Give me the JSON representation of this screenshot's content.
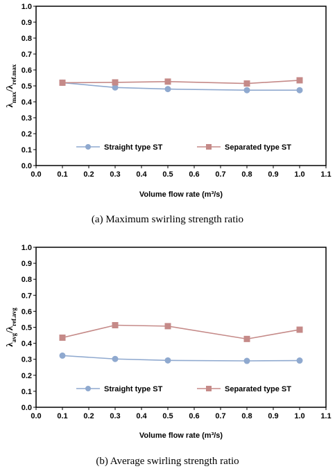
{
  "chart_data": [
    {
      "type": "line",
      "x": [
        0.1,
        0.3,
        0.5,
        0.8,
        1.0
      ],
      "series": [
        {
          "name": "Straight type ST",
          "values": [
            0.52,
            0.49,
            0.48,
            0.473,
            0.473
          ],
          "color": "#8fa9cf",
          "marker": "circle"
        },
        {
          "name": "Separated type ST",
          "values": [
            0.52,
            0.522,
            0.527,
            0.515,
            0.535
          ],
          "color": "#c58a88",
          "marker": "square"
        }
      ],
      "xlabel": "Volume flow rate (m³/s)",
      "ylabel_main": "λ",
      "ylabel_main_sub": "max",
      "ylabel_ref": "λ",
      "ylabel_ref_sub": "ref.max",
      "xlim": [
        0.0,
        1.1
      ],
      "ylim": [
        0.0,
        1.0
      ],
      "xticks": [
        "0.0",
        "0.1",
        "0.2",
        "0.3",
        "0.4",
        "0.5",
        "0.6",
        "0.7",
        "0.8",
        "0.9",
        "1.0",
        "1.1"
      ],
      "yticks": [
        "0.0",
        "0.1",
        "0.2",
        "0.3",
        "0.4",
        "0.5",
        "0.6",
        "0.7",
        "0.8",
        "0.9",
        "1.0"
      ],
      "legend_position": "lower-center",
      "grid": false,
      "caption": "(a)  Maximum  swirling  strength  ratio"
    },
    {
      "type": "line",
      "x": [
        0.1,
        0.3,
        0.5,
        0.8,
        1.0
      ],
      "series": [
        {
          "name": "Straight type ST",
          "values": [
            0.323,
            0.302,
            0.293,
            0.29,
            0.292
          ],
          "color": "#8fa9cf",
          "marker": "circle"
        },
        {
          "name": "Separated type ST",
          "values": [
            0.435,
            0.513,
            0.507,
            0.427,
            0.485
          ],
          "color": "#c58a88",
          "marker": "square"
        }
      ],
      "xlabel": "Volume flow rate (m³/s)",
      "ylabel_main": "λ",
      "ylabel_main_sub": "avg",
      "ylabel_ref": "λ",
      "ylabel_ref_sub": "ref.avg",
      "xlim": [
        0.0,
        1.1
      ],
      "ylim": [
        0.0,
        1.0
      ],
      "xticks": [
        "0.0",
        "0.1",
        "0.2",
        "0.3",
        "0.4",
        "0.5",
        "0.6",
        "0.7",
        "0.8",
        "0.9",
        "1.0",
        "1.1"
      ],
      "yticks": [
        "0.0",
        "0.1",
        "0.2",
        "0.3",
        "0.4",
        "0.5",
        "0.6",
        "0.7",
        "0.8",
        "0.9",
        "1.0"
      ],
      "legend_position": "lower-center",
      "grid": false,
      "caption": "(b)  Average  swirling  strength  ratio"
    }
  ]
}
